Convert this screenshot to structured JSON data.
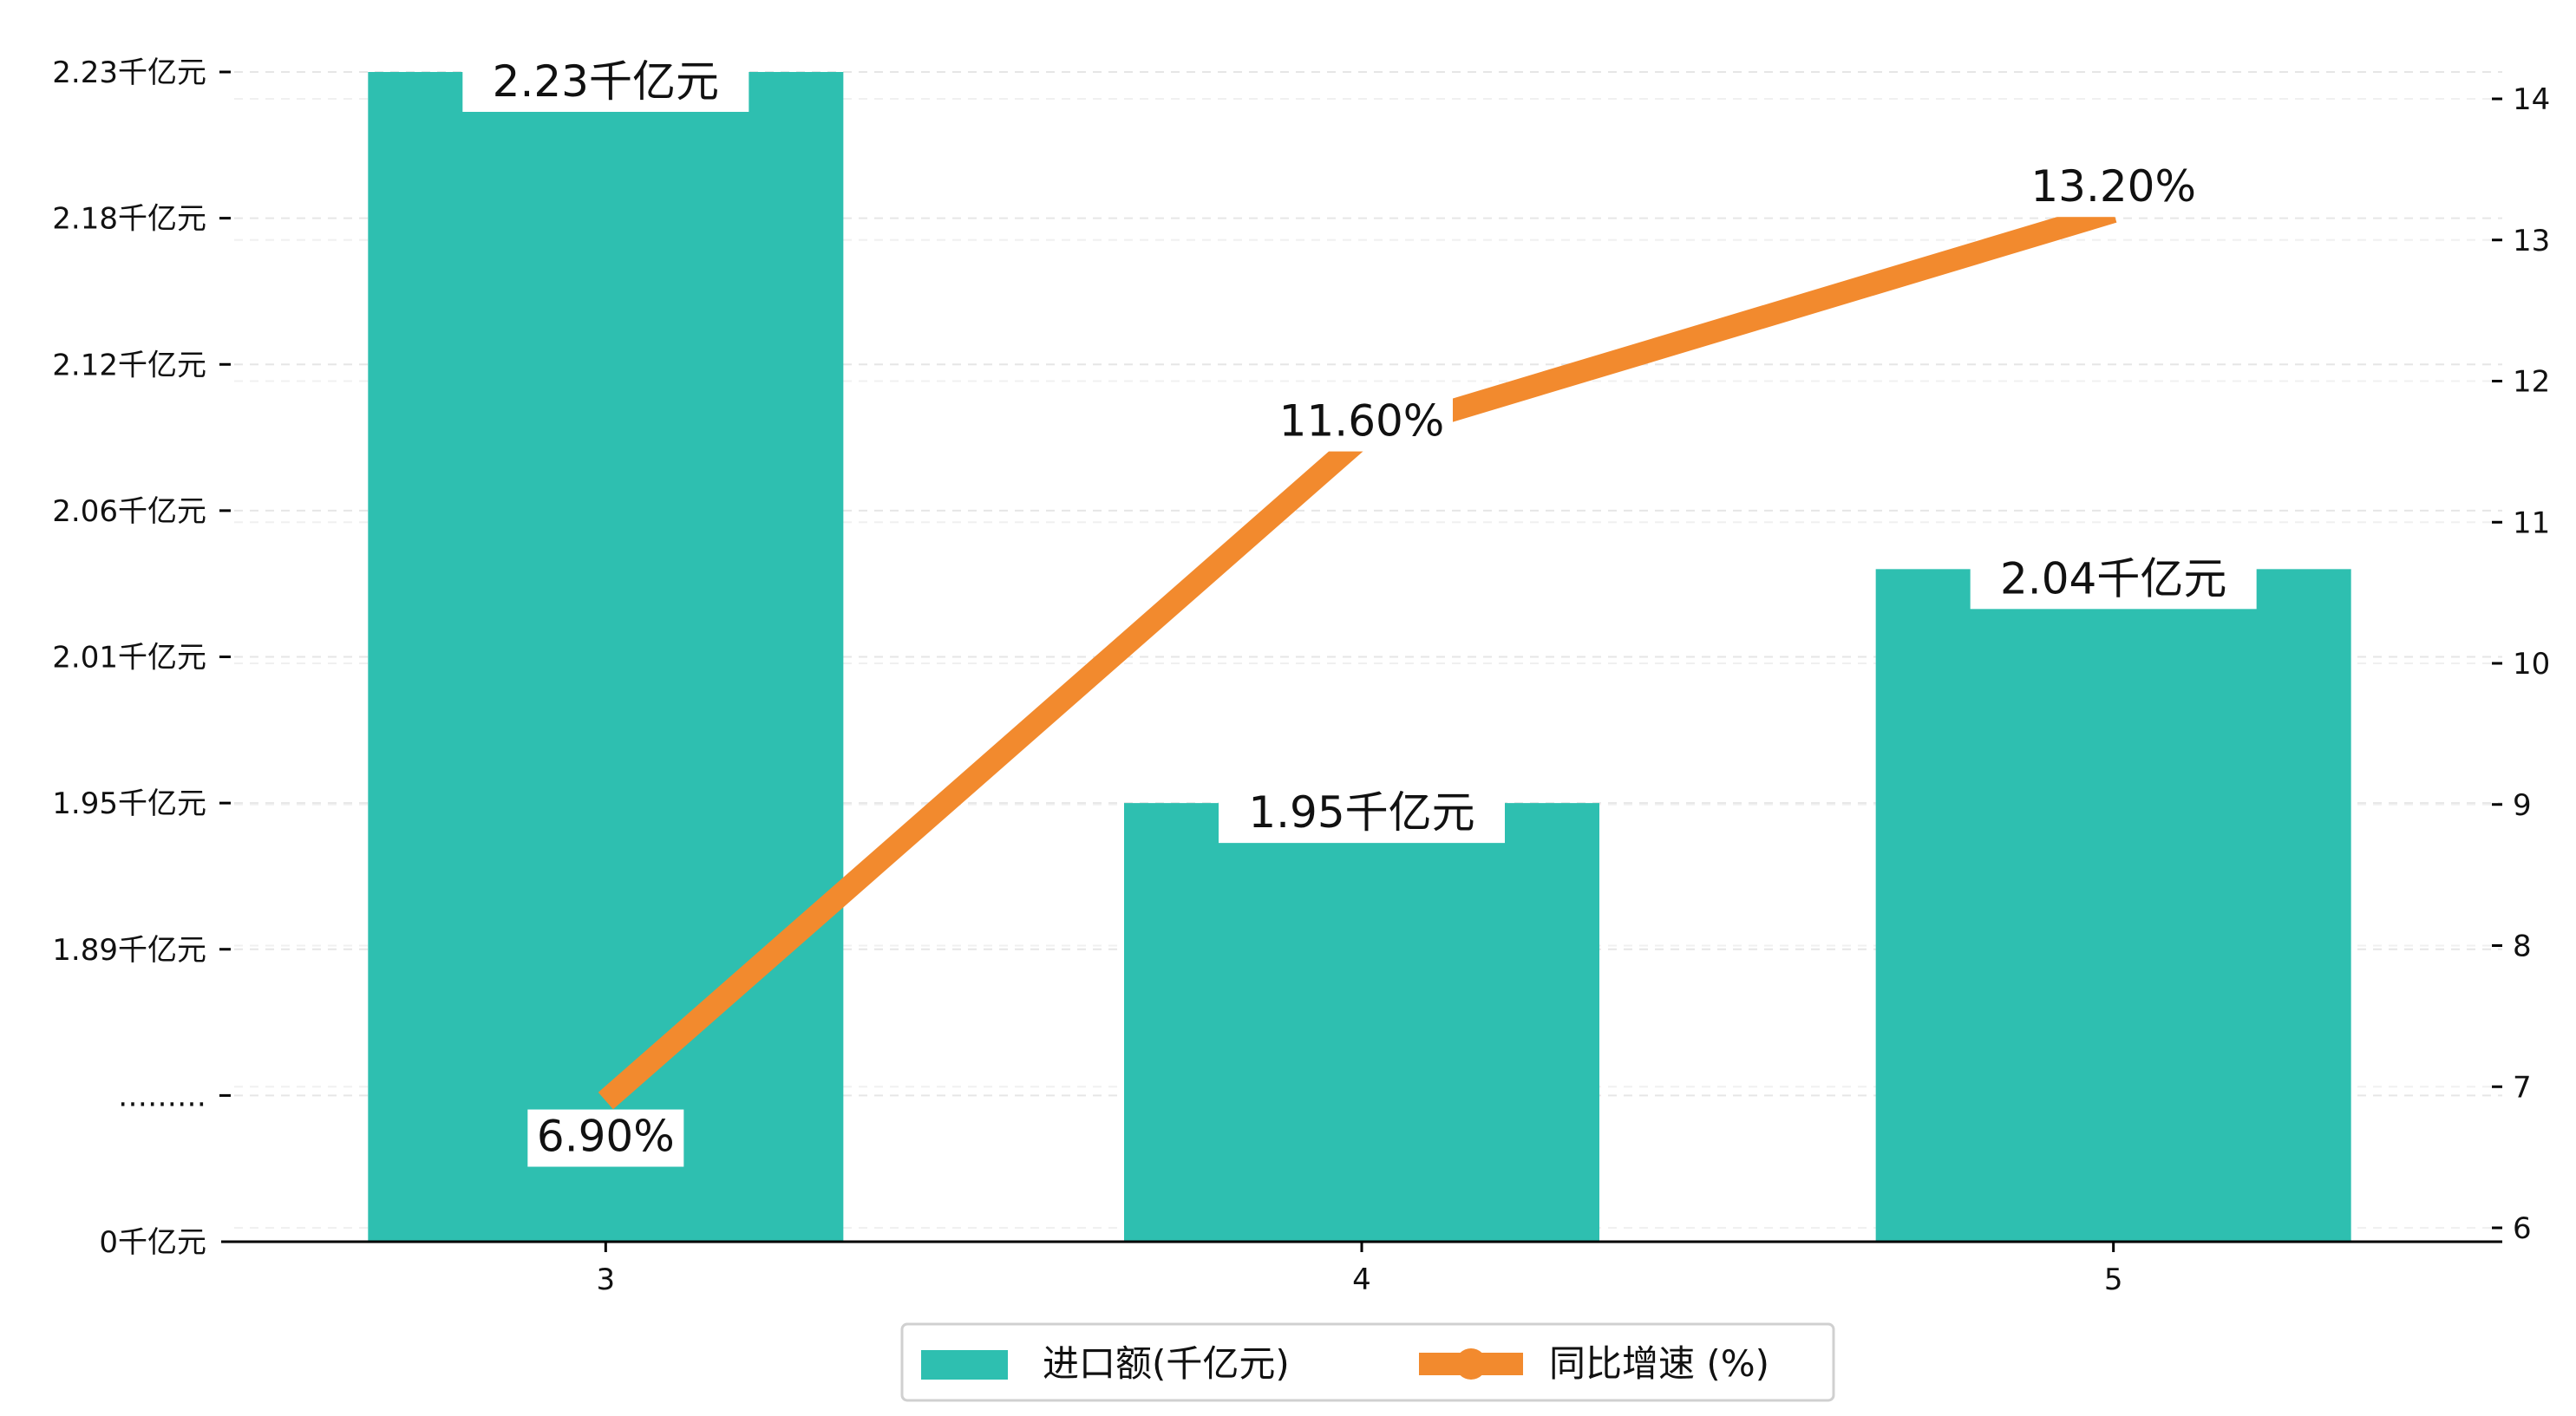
{
  "chart_data": {
    "type": "bar+line",
    "categories": [
      "3",
      "4",
      "5"
    ],
    "series": [
      {
        "name": "进口额(千亿元)",
        "type": "bar",
        "axis": "left",
        "values": [
          2.23,
          1.95,
          2.04
        ],
        "labels": [
          "2.23千亿元",
          "1.95千亿元",
          "2.04千亿元"
        ],
        "color": "#2ebfb0"
      },
      {
        "name": "同比增速 (%)",
        "type": "line",
        "axis": "right",
        "values": [
          6.9,
          11.6,
          13.2
        ],
        "labels": [
          "6.90%",
          "11.60%",
          "13.20%"
        ],
        "color": "#f28a2e"
      }
    ],
    "y_left": {
      "tick_labels": [
        "0千亿元",
        "………",
        "1.89千亿元",
        "1.95千亿元",
        "2.01千亿元",
        "2.06千亿元",
        "2.12千亿元",
        "2.18千亿元",
        "2.23千亿元"
      ],
      "broken_axis": true,
      "tick_values": [
        null,
        null,
        1.89,
        1.95,
        2.01,
        2.06,
        2.12,
        2.18,
        2.23
      ]
    },
    "y_right": {
      "ylim": [
        6,
        14
      ],
      "tick_labels": [
        "6",
        "7",
        "8",
        "9",
        "10",
        "11",
        "12",
        "13",
        "14"
      ]
    },
    "grid": "horizontal dashed",
    "legend_position": "bottom-center"
  }
}
